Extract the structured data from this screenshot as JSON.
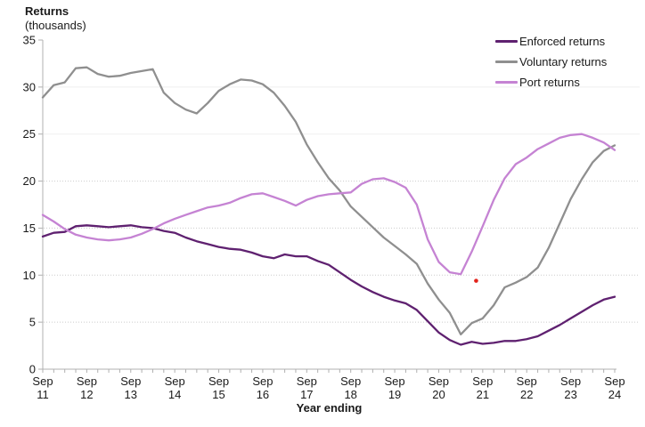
{
  "header": {
    "title": "Returns",
    "subtitle": "(thousands)"
  },
  "colors": {
    "axis": "#b0b0b0",
    "grid_solid": "#efefef",
    "grid_dotted": "#cccccc",
    "text": "#1a1a1a"
  },
  "chart_data": {
    "type": "line",
    "title": "Returns (thousands)",
    "xlabel": "Year ending",
    "ylabel": "Returns (thousands)",
    "ylim": [
      0,
      35
    ],
    "ytick_step": 5,
    "y_tick_labels": [
      "35",
      "30",
      "25",
      "20",
      "15",
      "10",
      "5",
      "0"
    ],
    "grid": "horizontal only, very faint; lower gridlines dotted",
    "legend_position": "top-right",
    "x_axis_note": "quarterly series with a small tick every quarter; year labels shown each September",
    "x_tick_labels": [
      "Sep 11",
      "Sep 12",
      "Sep 13",
      "Sep 14",
      "Sep 15",
      "Sep 16",
      "Sep 17",
      "Sep 18",
      "Sep 19",
      "Sep 20",
      "Sep 21",
      "Sep 22",
      "Sep 23",
      "Sep 24"
    ],
    "categories": [
      "Sep 11",
      "Dec 11",
      "Mar 12",
      "Jun 12",
      "Sep 12",
      "Dec 12",
      "Mar 13",
      "Jun 13",
      "Sep 13",
      "Dec 13",
      "Mar 14",
      "Jun 14",
      "Sep 14",
      "Dec 14",
      "Mar 15",
      "Jun 15",
      "Sep 15",
      "Dec 15",
      "Mar 16",
      "Jun 16",
      "Sep 16",
      "Dec 16",
      "Mar 17",
      "Jun 17",
      "Sep 17",
      "Dec 17",
      "Mar 18",
      "Jun 18",
      "Sep 18",
      "Dec 18",
      "Mar 19",
      "Jun 19",
      "Sep 19",
      "Dec 19",
      "Mar 20",
      "Jun 20",
      "Sep 20",
      "Dec 20",
      "Mar 21",
      "Jun 21",
      "Sep 21",
      "Dec 21",
      "Mar 22",
      "Jun 22",
      "Sep 22",
      "Dec 22",
      "Mar 23",
      "Jun 23",
      "Sep 23",
      "Dec 23",
      "Mar 24",
      "Jun 24",
      "Sep 24"
    ],
    "series": [
      {
        "name": "Enforced returns",
        "color": "#5f2170",
        "values": [
          14.1,
          14.5,
          14.6,
          15.2,
          15.3,
          15.2,
          15.1,
          15.2,
          15.3,
          15.1,
          15.0,
          14.7,
          14.5,
          14.0,
          13.6,
          13.3,
          13.0,
          12.8,
          12.7,
          12.4,
          12.0,
          11.8,
          12.2,
          12.0,
          12.0,
          11.5,
          11.1,
          10.3,
          9.5,
          8.8,
          8.2,
          7.7,
          7.3,
          7.0,
          6.3,
          5.1,
          3.9,
          3.1,
          2.6,
          2.9,
          2.7,
          2.8,
          3.0,
          3.0,
          3.2,
          3.5,
          4.1,
          4.7,
          5.4,
          6.1,
          6.8,
          7.4,
          7.7
        ]
      },
      {
        "name": "Voluntary returns",
        "color": "#8f8f8f",
        "values": [
          28.9,
          30.2,
          30.5,
          32.0,
          32.1,
          31.4,
          31.1,
          31.2,
          31.5,
          31.7,
          31.9,
          29.4,
          28.3,
          27.6,
          27.2,
          28.3,
          29.6,
          30.3,
          30.8,
          30.7,
          30.3,
          29.4,
          28.0,
          26.3,
          23.9,
          22.0,
          20.3,
          19.0,
          17.3,
          16.2,
          15.1,
          14.0,
          13.1,
          12.2,
          11.2,
          9.1,
          7.4,
          6.0,
          3.7,
          4.9,
          5.4,
          6.8,
          8.7,
          9.2,
          9.8,
          10.8,
          12.9,
          15.5,
          18.1,
          20.2,
          22.0,
          23.2,
          23.8
        ]
      },
      {
        "name": "Port returns",
        "color": "#c583d3",
        "values": [
          16.4,
          15.7,
          14.9,
          14.3,
          14.0,
          13.8,
          13.7,
          13.8,
          14.0,
          14.4,
          14.9,
          15.5,
          16.0,
          16.4,
          16.8,
          17.2,
          17.4,
          17.7,
          18.2,
          18.6,
          18.7,
          18.3,
          17.9,
          17.4,
          18.0,
          18.4,
          18.6,
          18.7,
          18.8,
          19.7,
          20.2,
          20.3,
          19.9,
          19.3,
          17.5,
          13.8,
          11.4,
          10.3,
          10.1,
          12.5,
          15.2,
          18.0,
          20.3,
          21.8,
          22.5,
          23.4,
          24.0,
          24.6,
          24.9,
          25.0,
          24.6,
          24.1,
          23.3
        ]
      }
    ],
    "annotation_point": {
      "between": "Jun 21 and Sep 21",
      "x_index": 39.4,
      "value": 9.4,
      "color": "#e2231b"
    }
  }
}
